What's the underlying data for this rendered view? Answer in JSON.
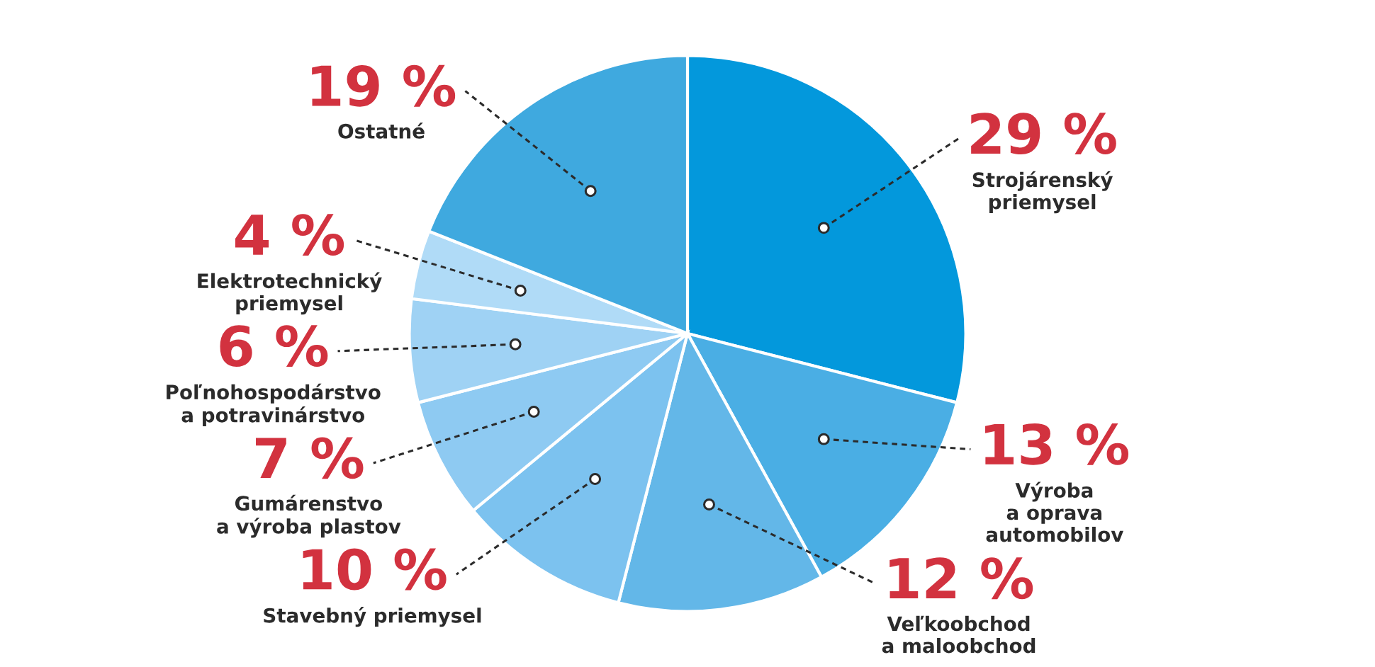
{
  "chart_data": {
    "type": "pie",
    "categories": [
      "Strojárenský\npriemysel",
      "Výroba\na oprava\nautomobilov",
      "Veľkoobchod\na maloobchod",
      "Stavebný priemysel",
      "Gumárenstvo\na výroba plastov",
      "Poľnohospodárstvo\na potravinárstvo",
      "Elektrotechnický\npriemysel",
      "Ostatné"
    ],
    "values": [
      29,
      13,
      12,
      10,
      7,
      6,
      4,
      19
    ],
    "colors": [
      "#0398dc",
      "#4aaee4",
      "#63b7e8",
      "#7cc2ef",
      "#8ecaf2",
      "#9fd2f4",
      "#b0dbf7",
      "#3fa9df"
    ],
    "value_labels": [
      "29 %",
      "13 %",
      "12 %",
      "10 %",
      "7 %",
      "6 %",
      "4 %",
      "19 %"
    ]
  }
}
